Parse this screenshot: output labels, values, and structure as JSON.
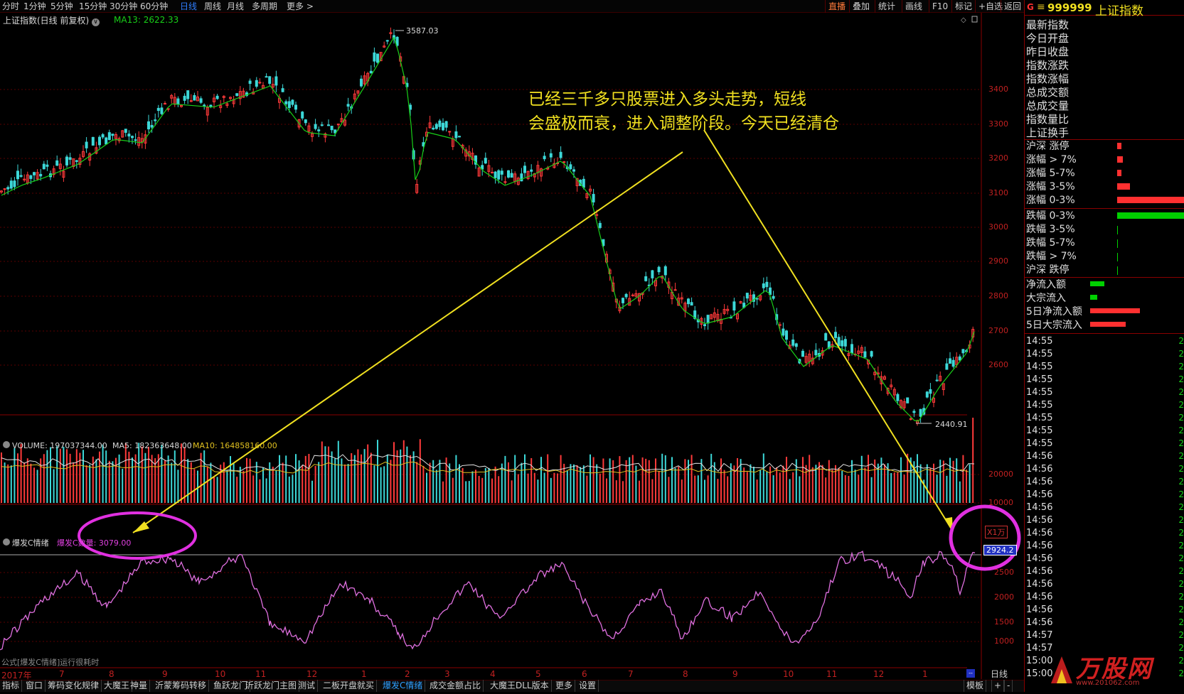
{
  "top_tabs": [
    "分时",
    "1分钟",
    "5分钟",
    "15分钟",
    "30分钟",
    "60分钟",
    "日线",
    "周线",
    "月线",
    "多周期",
    "更多 >"
  ],
  "top_active": "日线",
  "top_right": [
    "直播",
    "叠加",
    "统计",
    "画线",
    "F10",
    "标记",
    "+自选",
    "返回"
  ],
  "chart": {
    "title": "上证指数(日线 前复权)",
    "ma13": "MA13: 2622.33",
    "high_label": "3587.03",
    "low_label": "2440.91",
    "annotation_line1": "已经三千多只股票进入多头走势，短线",
    "annotation_line2": "会盛极而衰，进入调整阶段。今天已经清仓",
    "yticks": [
      "3400",
      "3300",
      "3200",
      "3100",
      "3000",
      "2900",
      "2800",
      "2700",
      "2600"
    ],
    "volume_label": "VOLUME: 197037344.00",
    "ma5_label": "MA5: 182363648.00",
    "ma10_label": "MA10: 164858160.00",
    "vol_yticks": [
      "20000",
      "10000"
    ],
    "vol_unit": "X1万",
    "indicator_name": "爆发C情绪",
    "indicator_value": "爆发C数量: 3079.00",
    "indicator_current": "2924.2",
    "ind_yticks": [
      "2500",
      "2000",
      "1500",
      "1000"
    ],
    "formula_note": "公式[爆发C情绪]运行很耗时",
    "x_year": "2017年",
    "x_labels": [
      "7",
      "8",
      "9",
      "10",
      "11",
      "12",
      "1",
      "2",
      "3",
      "4",
      "5",
      "6",
      "7",
      "8",
      "9",
      "10",
      "11",
      "12",
      "1"
    ],
    "period_label": "日线"
  },
  "right_panel": {
    "code": "999999",
    "name": "上证指数",
    "g_icon": "G",
    "fields": [
      "最新指数",
      "今日开盘",
      "昨日收盘",
      "指数涨跌",
      "指数涨幅",
      "总成交额",
      "总成交量",
      "指数量比",
      "上证换手"
    ],
    "up_rows": [
      "沪深 涨停",
      "涨幅 > 7%",
      "涨幅 5-7%",
      "涨幅 3-5%",
      "涨幅 0-3%"
    ],
    "down_rows": [
      "跌幅 0-3%",
      "跌幅 3-5%",
      "跌幅 5-7%",
      "跌幅 > 7%",
      "沪深 跌停"
    ],
    "flow_rows": [
      "净流入额",
      "大宗流入",
      "5日净流入额",
      "5日大宗流入"
    ],
    "ticks": [
      "14:55",
      "14:55",
      "14:55",
      "14:55",
      "14:55",
      "14:55",
      "14:55",
      "14:55",
      "14:55",
      "14:56",
      "14:56",
      "14:56",
      "14:56",
      "14:56",
      "14:56",
      "14:56",
      "14:56",
      "14:56",
      "14:56",
      "14:56",
      "14:56",
      "14:56",
      "14:56",
      "14:57",
      "14:57",
      "15:00",
      "15:00"
    ],
    "tick_val": "2",
    "watermark": "万股网",
    "watermark_url": "www.201062.com",
    "bar_colors": {
      "up": "#ff3030",
      "down": "#00d000"
    }
  },
  "bottom_tabs": [
    "指标",
    "窗口",
    "筹码变化规律",
    "大魔王",
    "神量",
    "沂蒙筹码转移",
    "鱼跃龙门",
    "沂跃龙门主图",
    "测试",
    "二板开盘就买",
    "爆发C情绪",
    "成交金额占比",
    "大魔王DLL版本",
    "更多",
    "设置"
  ],
  "bottom_active": "爆发C情绪",
  "bottom_right": [
    "模板",
    "+",
    "-"
  ]
}
